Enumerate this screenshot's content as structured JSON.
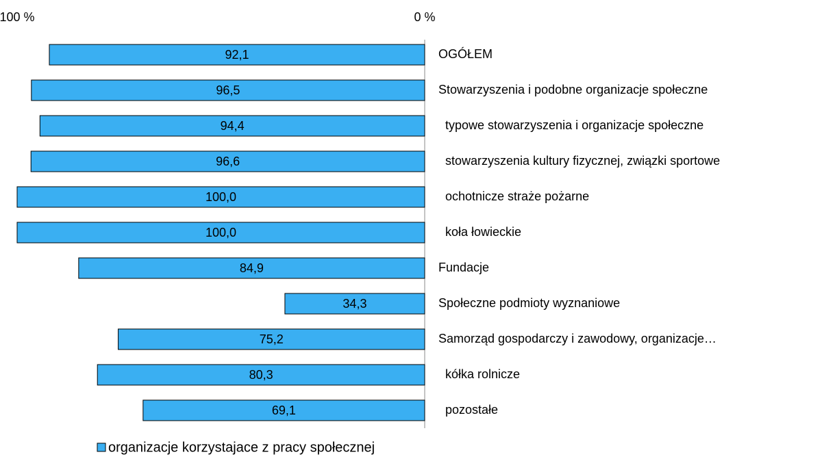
{
  "chart_data": {
    "type": "hbar",
    "categories": [
      "OGÓŁEM",
      "Stowarzyszenia i podobne organizacje społeczne",
      "  typowe stowarzyszenia i organizacje społeczne",
      "  stowarzyszenia kultury fizycznej, związki sportowe",
      "  ochotnicze straże pożarne",
      "  koła łowieckie",
      "Fundacje",
      "Społeczne podmioty wyznaniowe",
      "Samorząd gospodarczy i zawodowy, organizacje…",
      "  kółka rolnicze",
      "  pozostałe"
    ],
    "series": [
      {
        "name": "organizacje korzystajace z pracy społecznej",
        "color": "#3aaff2",
        "values": [
          92.1,
          96.5,
          94.4,
          96.6,
          100.0,
          100.0,
          84.9,
          34.3,
          75.2,
          80.3,
          69.1
        ],
        "value_labels": [
          "92,1",
          "96,5",
          "94,4",
          "96,6",
          "100,0",
          "100,0",
          "84,9",
          "34,3",
          "75,2",
          "80,3",
          "69,1"
        ]
      }
    ],
    "xlim": [
      0,
      100
    ],
    "x_reversed": true,
    "xticks": [
      {
        "value": 100,
        "label": "100 %"
      },
      {
        "value": 0,
        "label": "0 %"
      }
    ]
  }
}
